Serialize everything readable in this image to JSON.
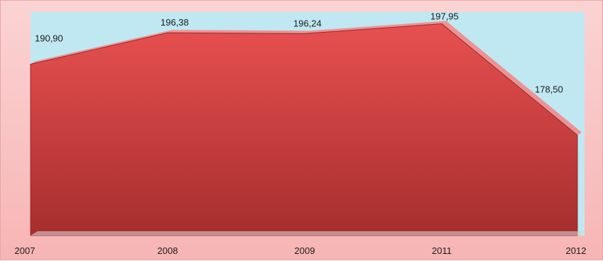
{
  "chart_data": {
    "type": "area",
    "categories": [
      "2007",
      "2008",
      "2009",
      "2011",
      "2012"
    ],
    "values": [
      190.9,
      196.38,
      196.24,
      197.95,
      178.5
    ],
    "data_labels": [
      "190,90",
      "196,38",
      "196,24",
      "197,95",
      "178,50"
    ],
    "title": "",
    "xlabel": "",
    "ylabel": "",
    "ylim": [
      161.0,
      200.0
    ],
    "grid": false,
    "legend": "none",
    "style": "3d"
  },
  "colors": {
    "frame_top": "#fbd3d3",
    "frame_bottom": "#f7b5b5",
    "wall": "#bfe8f2",
    "area_top": "#e85050",
    "area_bottom": "#a62e2e",
    "area_ridge": "#f08a8a",
    "floor": "#d3d3d3"
  }
}
